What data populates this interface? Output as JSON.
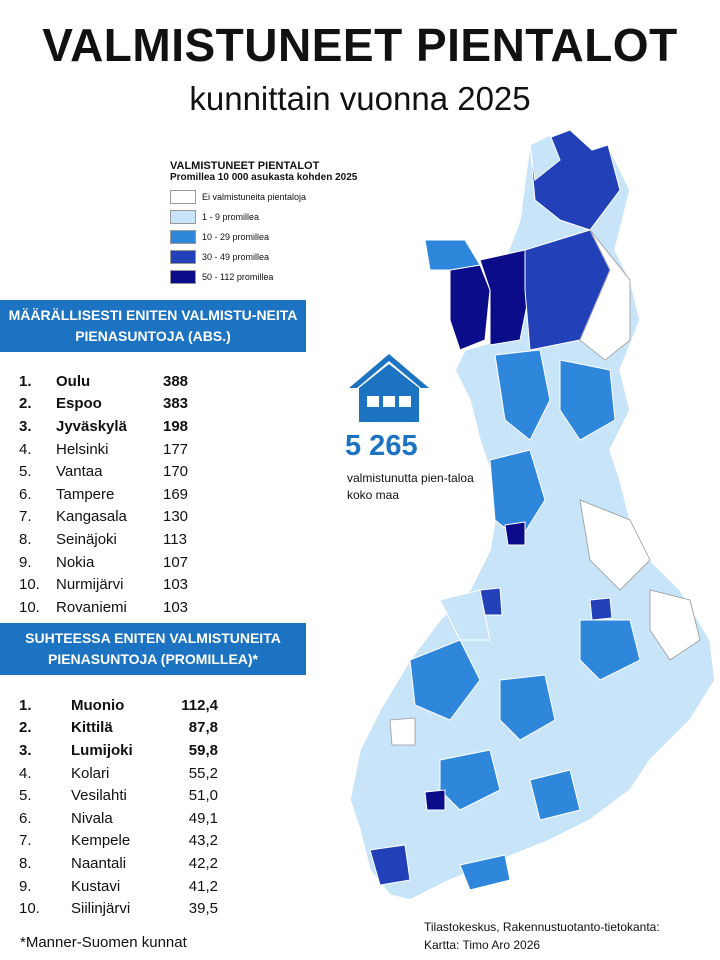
{
  "header": {
    "title": "VALMISTUNEET PIENTALOT",
    "subtitle": "kunnittain vuonna 2025"
  },
  "legend": {
    "title": "VALMISTUNEET PIENTALOT",
    "subtitle": "Promillea 10 000 asukasta kohden 2025",
    "items": [
      {
        "label": "Ei valmistuneita pientaloja",
        "color": "#ffffff"
      },
      {
        "label": "1 - 9 promillea",
        "color": "#c8e4f8"
      },
      {
        "label": "10 - 29 promillea",
        "color": "#2f87dc"
      },
      {
        "label": "30 - 49 promillea",
        "color": "#2241b8"
      },
      {
        "label": "50 - 112 promillea",
        "color": "#0b0c8a"
      }
    ]
  },
  "absolute": {
    "heading": "MÄÄRÄLLISESTI ENITEN VALMISTU-NEITA PIENASUNTOJA (ABS.)",
    "rows": [
      {
        "rank": "1.",
        "city": "Oulu",
        "value": "388"
      },
      {
        "rank": "2.",
        "city": "Espoo",
        "value": "383"
      },
      {
        "rank": "3.",
        "city": "Jyväskylä",
        "value": "198"
      },
      {
        "rank": "4.",
        "city": "Helsinki",
        "value": "177"
      },
      {
        "rank": "5.",
        "city": "Vantaa",
        "value": "170"
      },
      {
        "rank": "6.",
        "city": "Tampere",
        "value": "169"
      },
      {
        "rank": "7.",
        "city": "Kangasala",
        "value": "130"
      },
      {
        "rank": "8.",
        "city": "Seinäjoki",
        "value": "113"
      },
      {
        "rank": "9.",
        "city": "Nokia",
        "value": "107"
      },
      {
        "rank": "10.",
        "city": "Nurmijärvi",
        "value": "103"
      },
      {
        "rank": "10.",
        "city": "Rovaniemi",
        "value": "103"
      }
    ]
  },
  "relative": {
    "heading": "SUHTEESSA ENITEN VALMISTUNEITA PIENASUNTOJA (PROMILLEA)*",
    "rows": [
      {
        "rank": "1.",
        "city": "Muonio",
        "value": "112,4"
      },
      {
        "rank": "2.",
        "city": "Kittilä",
        "value": "87,8"
      },
      {
        "rank": "3.",
        "city": "Lumijoki",
        "value": "59,8"
      },
      {
        "rank": "4.",
        "city": "Kolari",
        "value": "55,2"
      },
      {
        "rank": "5.",
        "city": "Vesilahti",
        "value": "51,0"
      },
      {
        "rank": "6.",
        "city": "Nivala",
        "value": "49,1"
      },
      {
        "rank": "7.",
        "city": "Kempele",
        "value": "43,2"
      },
      {
        "rank": "8.",
        "city": "Naantali",
        "value": "42,2"
      },
      {
        "rank": "9.",
        "city": "Kustavi",
        "value": "41,2"
      },
      {
        "rank": "10.",
        "city": "Siilinjärvi",
        "value": "39,5"
      }
    ]
  },
  "total": {
    "value": "5 265",
    "description": "valmistunutta pien-taloa koko maa"
  },
  "footnote": "*Manner-Suomen kunnat",
  "source": {
    "line1": "Tilastokeskus, Rakennustuotanto-tietokanta:",
    "line2": "Kartta: Timo Aro 2026"
  }
}
